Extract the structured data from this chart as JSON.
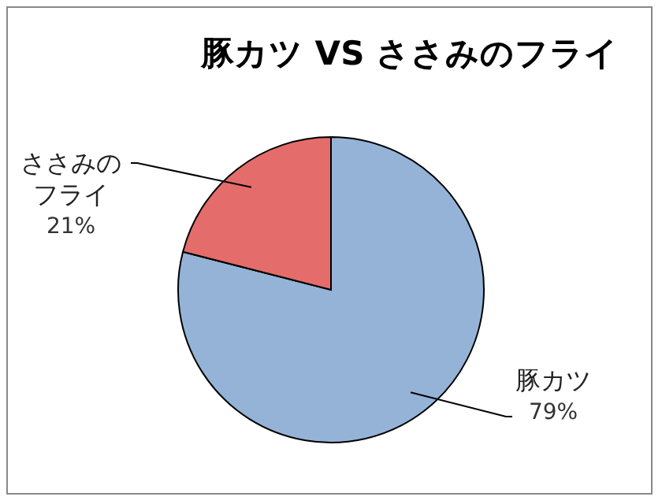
{
  "chart_data": {
    "type": "pie",
    "title": "豚カツ VS ささみのフライ",
    "categories": [
      "豚カツ",
      "ささみのフライ"
    ],
    "values": [
      79,
      21
    ],
    "colors": [
      "#95b3d7",
      "#e46c6a"
    ],
    "value_labels": [
      "79%",
      "21%"
    ]
  }
}
